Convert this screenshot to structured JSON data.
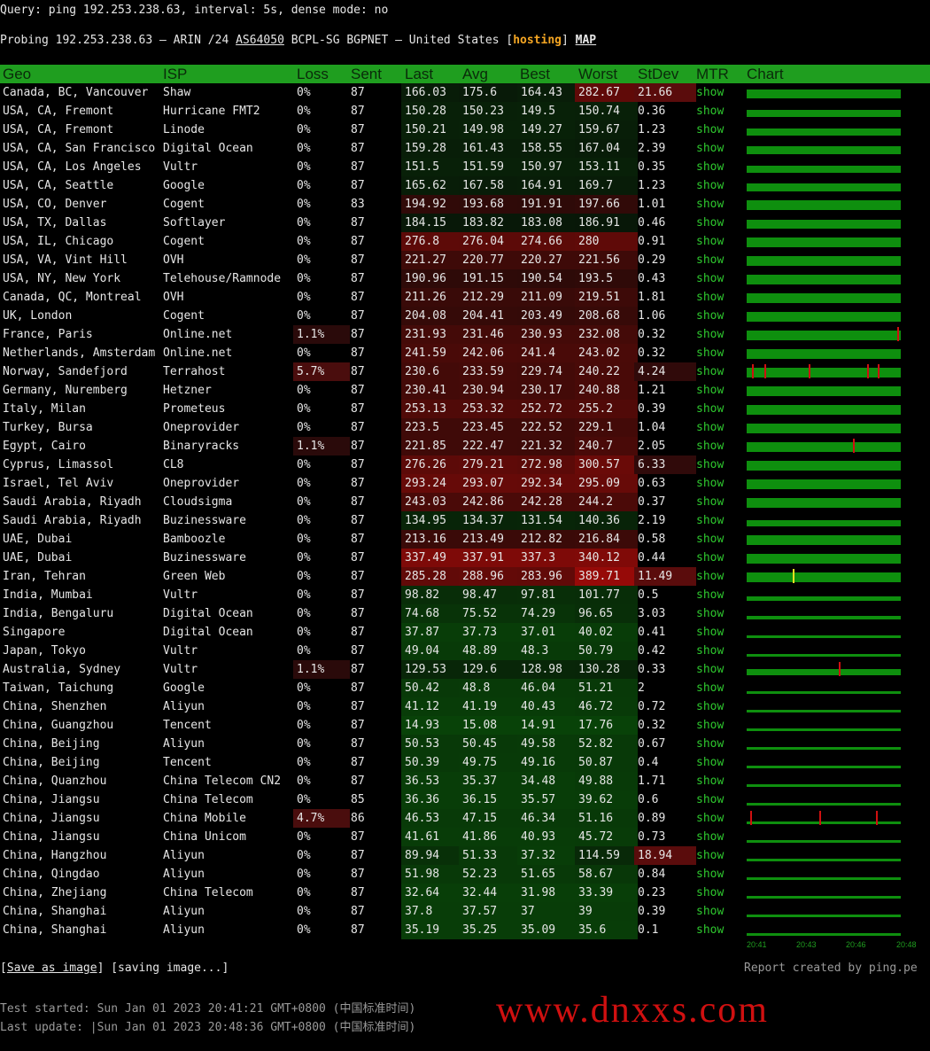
{
  "query_line": "Query: ping 192.253.238.63, interval: 5s, dense mode: no",
  "probe": {
    "prefix": "Probing 192.253.238.63 — ARIN /24 ",
    "asn": "AS64050",
    "middle": " BCPL-SG BGPNET — United States [",
    "tag": "hosting",
    "close": "] ",
    "map": "MAP"
  },
  "columns": [
    "Geo",
    "ISP",
    "Loss",
    "Sent",
    "Last",
    "Avg",
    "Best",
    "Worst",
    "StDev",
    "MTR",
    "Chart"
  ],
  "colors": {
    "header": "#1f9e1f",
    "bar": "#0e8f0e",
    "loss_marker": "#d01010",
    "spike_marker": "#e8e020",
    "hosting": "#f5a623",
    "show": "#2ec82e"
  },
  "rows": [
    {
      "geo": "Canada, BC, Vancouver",
      "isp": "Shaw",
      "loss": "0%",
      "sent": "87",
      "last": "166.03",
      "avg": "175.6",
      "best": "164.43",
      "worst": "282.67",
      "stdev": "21.66",
      "mtr": "show",
      "markers": [],
      "spikes": []
    },
    {
      "geo": "USA, CA, Fremont",
      "isp": "Hurricane FMT2",
      "loss": "0%",
      "sent": "87",
      "last": "150.28",
      "avg": "150.23",
      "best": "149.5",
      "worst": "150.74",
      "stdev": "0.36",
      "mtr": "show",
      "markers": [],
      "spikes": []
    },
    {
      "geo": "USA, CA, Fremont",
      "isp": "Linode",
      "loss": "0%",
      "sent": "87",
      "last": "150.21",
      "avg": "149.98",
      "best": "149.27",
      "worst": "159.67",
      "stdev": "1.23",
      "mtr": "show",
      "markers": [],
      "spikes": []
    },
    {
      "geo": "USA, CA, San Francisco",
      "isp": "Digital Ocean",
      "loss": "0%",
      "sent": "87",
      "last": "159.28",
      "avg": "161.43",
      "best": "158.55",
      "worst": "167.04",
      "stdev": "2.39",
      "mtr": "show",
      "markers": [],
      "spikes": []
    },
    {
      "geo": "USA, CA, Los Angeles",
      "isp": "Vultr",
      "loss": "0%",
      "sent": "87",
      "last": "151.5",
      "avg": "151.59",
      "best": "150.97",
      "worst": "153.11",
      "stdev": "0.35",
      "mtr": "show",
      "markers": [],
      "spikes": []
    },
    {
      "geo": "USA, CA, Seattle",
      "isp": "Google",
      "loss": "0%",
      "sent": "87",
      "last": "165.62",
      "avg": "167.58",
      "best": "164.91",
      "worst": "169.7",
      "stdev": "1.23",
      "mtr": "show",
      "markers": [],
      "spikes": []
    },
    {
      "geo": "USA, CO, Denver",
      "isp": "Cogent",
      "loss": "0%",
      "sent": "83",
      "last": "194.92",
      "avg": "193.68",
      "best": "191.91",
      "worst": "197.66",
      "stdev": "1.01",
      "mtr": "show",
      "markers": [],
      "spikes": []
    },
    {
      "geo": "USA, TX, Dallas",
      "isp": "Softlayer",
      "loss": "0%",
      "sent": "87",
      "last": "184.15",
      "avg": "183.82",
      "best": "183.08",
      "worst": "186.91",
      "stdev": "0.46",
      "mtr": "show",
      "markers": [],
      "spikes": []
    },
    {
      "geo": "USA, IL, Chicago",
      "isp": "Cogent",
      "loss": "0%",
      "sent": "87",
      "last": "276.8",
      "avg": "276.04",
      "best": "274.66",
      "worst": "280",
      "stdev": "0.91",
      "mtr": "show",
      "markers": [],
      "spikes": []
    },
    {
      "geo": "USA, VA, Vint Hill",
      "isp": "OVH",
      "loss": "0%",
      "sent": "87",
      "last": "221.27",
      "avg": "220.77",
      "best": "220.27",
      "worst": "221.56",
      "stdev": "0.29",
      "mtr": "show",
      "markers": [],
      "spikes": []
    },
    {
      "geo": "USA, NY, New York",
      "isp": "Telehouse/Ramnode",
      "loss": "0%",
      "sent": "87",
      "last": "190.96",
      "avg": "191.15",
      "best": "190.54",
      "worst": "193.5",
      "stdev": "0.43",
      "mtr": "show",
      "markers": [],
      "spikes": []
    },
    {
      "geo": "Canada, QC, Montreal",
      "isp": "OVH",
      "loss": "0%",
      "sent": "87",
      "last": "211.26",
      "avg": "212.29",
      "best": "211.09",
      "worst": "219.51",
      "stdev": "1.81",
      "mtr": "show",
      "markers": [],
      "spikes": []
    },
    {
      "geo": "UK, London",
      "isp": "Cogent",
      "loss": "0%",
      "sent": "87",
      "last": "204.08",
      "avg": "204.41",
      "best": "203.49",
      "worst": "208.68",
      "stdev": "1.06",
      "mtr": "show",
      "markers": [],
      "spikes": []
    },
    {
      "geo": "France, Paris",
      "isp": "Online.net",
      "loss": "1.1%",
      "sent": "87",
      "last": "231.93",
      "avg": "231.46",
      "best": "230.93",
      "worst": "232.08",
      "stdev": "0.32",
      "mtr": "show",
      "markers": [
        85
      ],
      "spikes": []
    },
    {
      "geo": "Netherlands, Amsterdam",
      "isp": "Online.net",
      "loss": "0%",
      "sent": "87",
      "last": "241.59",
      "avg": "242.06",
      "best": "241.4",
      "worst": "243.02",
      "stdev": "0.32",
      "mtr": "show",
      "markers": [],
      "spikes": []
    },
    {
      "geo": "Norway, Sandefjord",
      "isp": "Terrahost",
      "loss": "5.7%",
      "sent": "87",
      "last": "230.6",
      "avg": "233.59",
      "best": "229.74",
      "worst": "240.22",
      "stdev": "4.24",
      "mtr": "show",
      "markers": [
        3,
        10,
        35,
        68,
        74
      ],
      "spikes": []
    },
    {
      "geo": "Germany, Nuremberg",
      "isp": "Hetzner",
      "loss": "0%",
      "sent": "87",
      "last": "230.41",
      "avg": "230.94",
      "best": "230.17",
      "worst": "240.88",
      "stdev": "1.21",
      "mtr": "show",
      "markers": [],
      "spikes": []
    },
    {
      "geo": "Italy, Milan",
      "isp": "Prometeus",
      "loss": "0%",
      "sent": "87",
      "last": "253.13",
      "avg": "253.32",
      "best": "252.72",
      "worst": "255.2",
      "stdev": "0.39",
      "mtr": "show",
      "markers": [],
      "spikes": []
    },
    {
      "geo": "Turkey, Bursa",
      "isp": "Oneprovider",
      "loss": "0%",
      "sent": "87",
      "last": "223.5",
      "avg": "223.45",
      "best": "222.52",
      "worst": "229.1",
      "stdev": "1.04",
      "mtr": "show",
      "markers": [],
      "spikes": []
    },
    {
      "geo": "Egypt, Cairo",
      "isp": "Binaryracks",
      "loss": "1.1%",
      "sent": "87",
      "last": "221.85",
      "avg": "222.47",
      "best": "221.32",
      "worst": "240.7",
      "stdev": "2.05",
      "mtr": "show",
      "markers": [
        60
      ],
      "spikes": []
    },
    {
      "geo": "Cyprus, Limassol",
      "isp": "CL8",
      "loss": "0%",
      "sent": "87",
      "last": "276.26",
      "avg": "279.21",
      "best": "272.98",
      "worst": "300.57",
      "stdev": "6.33",
      "mtr": "show",
      "markers": [],
      "spikes": []
    },
    {
      "geo": "Israel, Tel Aviv",
      "isp": "Oneprovider",
      "loss": "0%",
      "sent": "87",
      "last": "293.24",
      "avg": "293.07",
      "best": "292.34",
      "worst": "295.09",
      "stdev": "0.63",
      "mtr": "show",
      "markers": [],
      "spikes": []
    },
    {
      "geo": "Saudi Arabia, Riyadh",
      "isp": "Cloudsigma",
      "loss": "0%",
      "sent": "87",
      "last": "243.03",
      "avg": "242.86",
      "best": "242.28",
      "worst": "244.2",
      "stdev": "0.37",
      "mtr": "show",
      "markers": [],
      "spikes": []
    },
    {
      "geo": "Saudi Arabia, Riyadh",
      "isp": "Buzinessware",
      "loss": "0%",
      "sent": "87",
      "last": "134.95",
      "avg": "134.37",
      "best": "131.54",
      "worst": "140.36",
      "stdev": "2.19",
      "mtr": "show",
      "markers": [],
      "spikes": []
    },
    {
      "geo": "UAE, Dubai",
      "isp": "Bamboozle",
      "loss": "0%",
      "sent": "87",
      "last": "213.16",
      "avg": "213.49",
      "best": "212.82",
      "worst": "216.84",
      "stdev": "0.58",
      "mtr": "show",
      "markers": [],
      "spikes": []
    },
    {
      "geo": "UAE, Dubai",
      "isp": "Buzinessware",
      "loss": "0%",
      "sent": "87",
      "last": "337.49",
      "avg": "337.91",
      "best": "337.3",
      "worst": "340.12",
      "stdev": "0.44",
      "mtr": "show",
      "markers": [],
      "spikes": []
    },
    {
      "geo": "Iran, Tehran",
      "isp": "Green Web",
      "loss": "0%",
      "sent": "87",
      "last": "285.28",
      "avg": "288.96",
      "best": "283.96",
      "worst": "389.71",
      "stdev": "11.49",
      "mtr": "show",
      "markers": [],
      "spikes": [
        26
      ]
    },
    {
      "geo": "India, Mumbai",
      "isp": "Vultr",
      "loss": "0%",
      "sent": "87",
      "last": "98.82",
      "avg": "98.47",
      "best": "97.81",
      "worst": "101.77",
      "stdev": "0.5",
      "mtr": "show",
      "markers": [],
      "spikes": []
    },
    {
      "geo": "India, Bengaluru",
      "isp": "Digital Ocean",
      "loss": "0%",
      "sent": "87",
      "last": "74.68",
      "avg": "75.52",
      "best": "74.29",
      "worst": "96.65",
      "stdev": "3.03",
      "mtr": "show",
      "markers": [],
      "spikes": []
    },
    {
      "geo": "Singapore",
      "isp": "Digital Ocean",
      "loss": "0%",
      "sent": "87",
      "last": "37.87",
      "avg": "37.73",
      "best": "37.01",
      "worst": "40.02",
      "stdev": "0.41",
      "mtr": "show",
      "markers": [],
      "spikes": []
    },
    {
      "geo": "Japan, Tokyo",
      "isp": "Vultr",
      "loss": "0%",
      "sent": "87",
      "last": "49.04",
      "avg": "48.89",
      "best": "48.3",
      "worst": "50.79",
      "stdev": "0.42",
      "mtr": "show",
      "markers": [],
      "spikes": []
    },
    {
      "geo": "Australia, Sydney",
      "isp": "Vultr",
      "loss": "1.1%",
      "sent": "87",
      "last": "129.53",
      "avg": "129.6",
      "best": "128.98",
      "worst": "130.28",
      "stdev": "0.33",
      "mtr": "show",
      "markers": [
        52
      ],
      "spikes": []
    },
    {
      "geo": "Taiwan, Taichung",
      "isp": "Google",
      "loss": "0%",
      "sent": "87",
      "last": "50.42",
      "avg": "48.8",
      "best": "46.04",
      "worst": "51.21",
      "stdev": "2",
      "mtr": "show",
      "markers": [],
      "spikes": []
    },
    {
      "geo": "China, Shenzhen",
      "isp": "Aliyun",
      "loss": "0%",
      "sent": "87",
      "last": "41.12",
      "avg": "41.19",
      "best": "40.43",
      "worst": "46.72",
      "stdev": "0.72",
      "mtr": "show",
      "markers": [],
      "spikes": []
    },
    {
      "geo": "China, Guangzhou",
      "isp": "Tencent",
      "loss": "0%",
      "sent": "87",
      "last": "14.93",
      "avg": "15.08",
      "best": "14.91",
      "worst": "17.76",
      "stdev": "0.32",
      "mtr": "show",
      "markers": [],
      "spikes": []
    },
    {
      "geo": "China, Beijing",
      "isp": "Aliyun",
      "loss": "0%",
      "sent": "87",
      "last": "50.53",
      "avg": "50.45",
      "best": "49.58",
      "worst": "52.82",
      "stdev": "0.67",
      "mtr": "show",
      "markers": [],
      "spikes": []
    },
    {
      "geo": "China, Beijing",
      "isp": "Tencent",
      "loss": "0%",
      "sent": "87",
      "last": "50.39",
      "avg": "49.75",
      "best": "49.16",
      "worst": "50.87",
      "stdev": "0.4",
      "mtr": "show",
      "markers": [],
      "spikes": []
    },
    {
      "geo": "China, Quanzhou",
      "isp": "China Telecom CN2",
      "loss": "0%",
      "sent": "87",
      "last": "36.53",
      "avg": "35.37",
      "best": "34.48",
      "worst": "49.88",
      "stdev": "1.71",
      "mtr": "show",
      "markers": [],
      "spikes": []
    },
    {
      "geo": "China, Jiangsu",
      "isp": "China Telecom",
      "loss": "0%",
      "sent": "85",
      "last": "36.36",
      "avg": "36.15",
      "best": "35.57",
      "worst": "39.62",
      "stdev": "0.6",
      "mtr": "show",
      "markers": [],
      "spikes": []
    },
    {
      "geo": "China, Jiangsu",
      "isp": "China Mobile",
      "loss": "4.7%",
      "sent": "86",
      "last": "46.53",
      "avg": "47.15",
      "best": "46.34",
      "worst": "51.16",
      "stdev": "0.89",
      "mtr": "show",
      "markers": [
        2,
        41,
        73
      ],
      "spikes": []
    },
    {
      "geo": "China, Jiangsu",
      "isp": "China Unicom",
      "loss": "0%",
      "sent": "87",
      "last": "41.61",
      "avg": "41.86",
      "best": "40.93",
      "worst": "45.72",
      "stdev": "0.73",
      "mtr": "show",
      "markers": [],
      "spikes": []
    },
    {
      "geo": "China, Hangzhou",
      "isp": "Aliyun",
      "loss": "0%",
      "sent": "87",
      "last": "89.94",
      "avg": "51.33",
      "best": "37.32",
      "worst": "114.59",
      "stdev": "18.94",
      "mtr": "show",
      "markers": [],
      "spikes": []
    },
    {
      "geo": "China, Qingdao",
      "isp": "Aliyun",
      "loss": "0%",
      "sent": "87",
      "last": "51.98",
      "avg": "52.23",
      "best": "51.65",
      "worst": "58.67",
      "stdev": "0.84",
      "mtr": "show",
      "markers": [],
      "spikes": []
    },
    {
      "geo": "China, Zhejiang",
      "isp": "China Telecom",
      "loss": "0%",
      "sent": "87",
      "last": "32.64",
      "avg": "32.44",
      "best": "31.98",
      "worst": "33.39",
      "stdev": "0.23",
      "mtr": "show",
      "markers": [],
      "spikes": []
    },
    {
      "geo": "China, Shanghai",
      "isp": "Aliyun",
      "loss": "0%",
      "sent": "87",
      "last": "37.8",
      "avg": "37.57",
      "best": "37",
      "worst": "39",
      "stdev": "0.39",
      "mtr": "show",
      "markers": [],
      "spikes": []
    },
    {
      "geo": "China, Shanghai",
      "isp": "Aliyun",
      "loss": "0%",
      "sent": "87",
      "last": "35.19",
      "avg": "35.25",
      "best": "35.09",
      "worst": "35.6",
      "stdev": "0.1",
      "mtr": "show",
      "markers": [],
      "spikes": []
    }
  ],
  "chart_times": [
    "20:41",
    "20:43",
    "20:46",
    "20:48"
  ],
  "footer": {
    "save_link": "Save as image",
    "saving": "[saving image...]",
    "credit": "Report created by ping.pe",
    "test_started": "Test started: Sun Jan 01 2023 20:41:21 GMT+0800 (中国标准时间)",
    "last_update": "Last update: |Sun Jan 01 2023 20:48:36 GMT+0800 (中国标准时间)"
  },
  "watermark": "www.dnxxs.com"
}
